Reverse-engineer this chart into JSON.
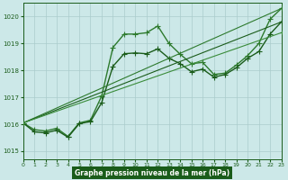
{
  "bg_color": "#cce8e8",
  "grid_color": "#aacccc",
  "line_color_dark": "#1a5c1a",
  "xlabel": "Graphe pression niveau de la mer (hPa)",
  "xlim": [
    0,
    23
  ],
  "ylim": [
    1014.7,
    1020.5
  ],
  "yticks": [
    1015,
    1016,
    1017,
    1018,
    1019,
    1020
  ],
  "xticks": [
    0,
    1,
    2,
    3,
    4,
    5,
    6,
    7,
    8,
    9,
    10,
    11,
    12,
    13,
    14,
    15,
    16,
    17,
    18,
    19,
    20,
    21,
    22,
    23
  ],
  "series": [
    {
      "x": [
        0,
        1,
        2,
        3,
        4,
        5,
        6,
        7,
        8,
        9,
        10,
        11,
        12,
        13,
        14,
        15,
        16,
        17,
        18,
        19,
        20,
        21,
        22,
        23
      ],
      "y": [
        1016.05,
        1015.8,
        1015.75,
        1015.85,
        1015.55,
        1016.05,
        1016.15,
        1017.05,
        1018.85,
        1019.35,
        1019.35,
        1019.4,
        1019.65,
        1019.0,
        1018.6,
        1018.25,
        1018.3,
        1017.85,
        1017.9,
        1018.2,
        1018.55,
        1019.0,
        1019.9,
        1020.3
      ],
      "color": "#2d7a2d",
      "lw": 1.0,
      "marker": "+",
      "ms": 4.0
    },
    {
      "x": [
        0,
        1,
        2,
        3,
        4,
        5,
        6,
        7,
        8,
        9,
        10,
        11,
        12,
        13,
        14,
        15,
        16,
        17,
        18,
        19,
        20,
        21,
        22,
        23
      ],
      "y": [
        1016.05,
        1015.72,
        1015.68,
        1015.78,
        1015.52,
        1016.02,
        1016.1,
        1016.8,
        1018.15,
        1018.62,
        1018.65,
        1018.62,
        1018.8,
        1018.45,
        1018.25,
        1017.95,
        1018.05,
        1017.75,
        1017.85,
        1018.1,
        1018.45,
        1018.7,
        1019.35,
        1019.8
      ],
      "color": "#1a5c1a",
      "lw": 1.0,
      "marker": "+",
      "ms": 4.0
    },
    {
      "x": [
        0,
        23
      ],
      "y": [
        1016.05,
        1020.3
      ],
      "color": "#2d7a2d",
      "lw": 0.8,
      "marker": "+",
      "ms": 3.5
    },
    {
      "x": [
        0,
        23
      ],
      "y": [
        1016.05,
        1019.8
      ],
      "color": "#1a5c1a",
      "lw": 0.8,
      "marker": "+",
      "ms": 3.5
    },
    {
      "x": [
        0,
        23
      ],
      "y": [
        1016.05,
        1019.4
      ],
      "color": "#3a8c3a",
      "lw": 0.8,
      "marker": "+",
      "ms": 3.5
    }
  ]
}
